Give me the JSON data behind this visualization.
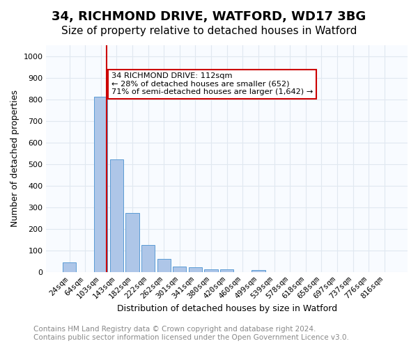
{
  "title1": "34, RICHMOND DRIVE, WATFORD, WD17 3BG",
  "title2": "Size of property relative to detached houses in Watford",
  "xlabel": "Distribution of detached houses by size in Watford",
  "ylabel": "Number of detached properties",
  "bar_labels": [
    "24sqm",
    "64sqm",
    "103sqm",
    "143sqm",
    "182sqm",
    "222sqm",
    "262sqm",
    "301sqm",
    "341sqm",
    "380sqm",
    "420sqm",
    "460sqm",
    "499sqm",
    "539sqm",
    "578sqm",
    "618sqm",
    "658sqm",
    "697sqm",
    "737sqm",
    "776sqm",
    "816sqm"
  ],
  "bar_values": [
    46,
    0,
    810,
    520,
    275,
    125,
    60,
    25,
    22,
    12,
    12,
    0,
    8,
    0,
    0,
    0,
    0,
    0,
    0,
    0,
    0
  ],
  "bar_color": "#aec6e8",
  "bar_edge_color": "#5b9bd5",
  "grid_color": "#e0e8f0",
  "vline_x": 2,
  "vline_color": "#cc0000",
  "annotation_text": "34 RICHMOND DRIVE: 112sqm\n← 28% of detached houses are smaller (652)\n71% of semi-detached houses are larger (1,642) →",
  "annotation_box_color": "#ffffff",
  "annotation_box_edge": "#cc0000",
  "ylim": [
    0,
    1050
  ],
  "yticks": [
    0,
    100,
    200,
    300,
    400,
    500,
    600,
    700,
    800,
    900,
    1000
  ],
  "footer1": "Contains HM Land Registry data © Crown copyright and database right 2024.",
  "footer2": "Contains public sector information licensed under the Open Government Licence v3.0.",
  "title1_fontsize": 13,
  "title2_fontsize": 11,
  "axis_label_fontsize": 9,
  "tick_fontsize": 8,
  "footer_fontsize": 7.5
}
